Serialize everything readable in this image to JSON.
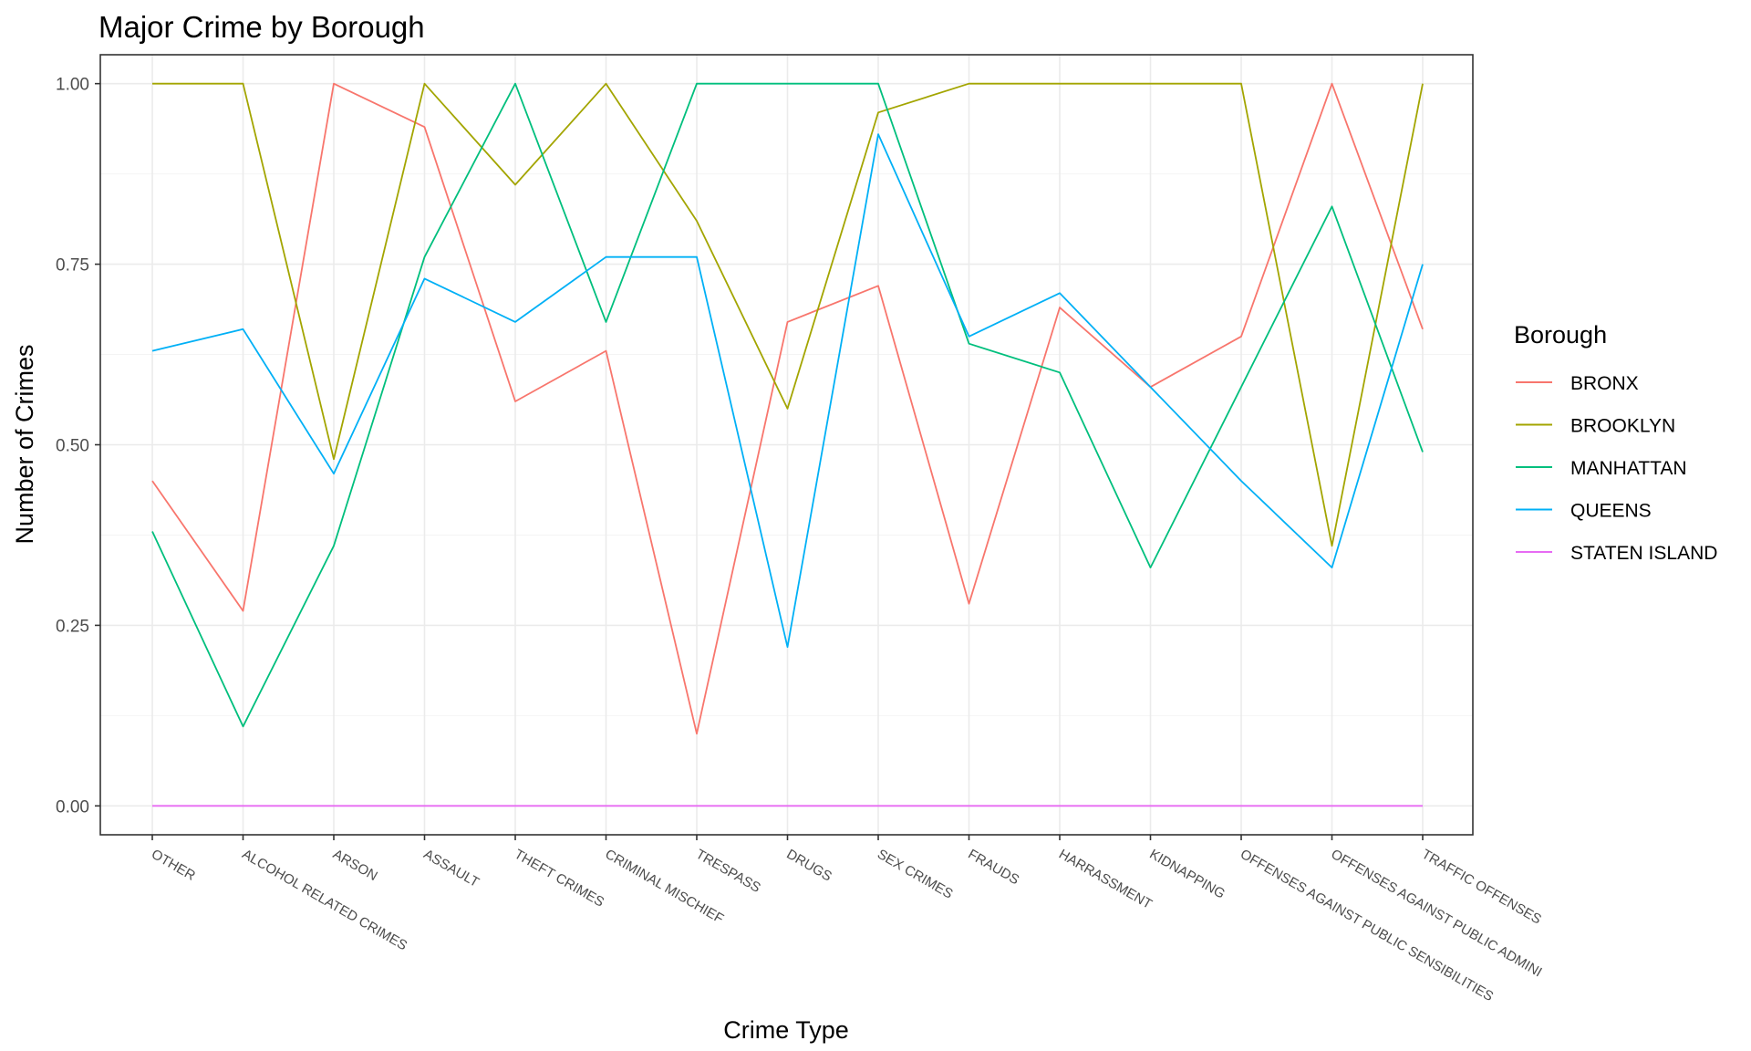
{
  "chart_data": {
    "type": "line",
    "title": "Major Crime by Borough",
    "xlabel": "Crime Type",
    "ylabel": "Number of Crimes",
    "ylim": [
      -0.04,
      1.04
    ],
    "yticks": [
      0,
      0.25,
      0.5,
      0.75,
      1
    ],
    "ytick_labels": [
      "0.00",
      "0.25",
      "0.50",
      "0.75",
      "1.00"
    ],
    "grid": true,
    "legend": {
      "title": "Borough",
      "position": "right"
    },
    "categories": [
      "OTHER",
      "ALCOHOL RELATED CRIMES",
      "ARSON",
      "ASSAULT",
      "THEFT CRIMES",
      "CRIMINAL MISCHIEF",
      "TRESPASS",
      "DRUGS",
      "SEX CRIMES",
      "FRAUDS",
      "HARRASSMENT",
      "KIDNAPPING",
      "OFFENSES AGAINST PUBLIC SENSIBILITIES",
      "OFFENSES AGAINST PUBLIC ADMINI",
      "TRAFFIC OFFENSES"
    ],
    "series": [
      {
        "name": "BRONX",
        "color": "#F8766D",
        "values": [
          0.45,
          0.27,
          1.0,
          0.94,
          0.56,
          0.63,
          0.1,
          0.67,
          0.72,
          0.28,
          0.69,
          0.58,
          0.65,
          1.0,
          0.66
        ]
      },
      {
        "name": "BROOKLYN",
        "color": "#A3A500",
        "values": [
          1.0,
          1.0,
          0.48,
          1.0,
          0.86,
          1.0,
          0.81,
          0.55,
          0.96,
          1.0,
          1.0,
          1.0,
          1.0,
          0.36,
          1.0
        ]
      },
      {
        "name": "MANHATTAN",
        "color": "#00BF7D",
        "values": [
          0.38,
          0.11,
          0.36,
          0.76,
          1.0,
          0.67,
          1.0,
          1.0,
          1.0,
          0.64,
          0.6,
          0.33,
          0.58,
          0.83,
          0.49
        ]
      },
      {
        "name": "QUEENS",
        "color": "#00B0F6",
        "values": [
          0.63,
          0.66,
          0.46,
          0.73,
          0.67,
          0.76,
          0.76,
          0.22,
          0.93,
          0.65,
          0.71,
          0.58,
          0.45,
          0.33,
          0.75
        ]
      },
      {
        "name": "STATEN ISLAND",
        "color": "#E76BF3",
        "values": [
          0,
          0,
          0,
          0,
          0,
          0,
          0,
          0,
          0,
          0,
          0,
          0,
          0,
          0,
          0
        ]
      }
    ]
  }
}
